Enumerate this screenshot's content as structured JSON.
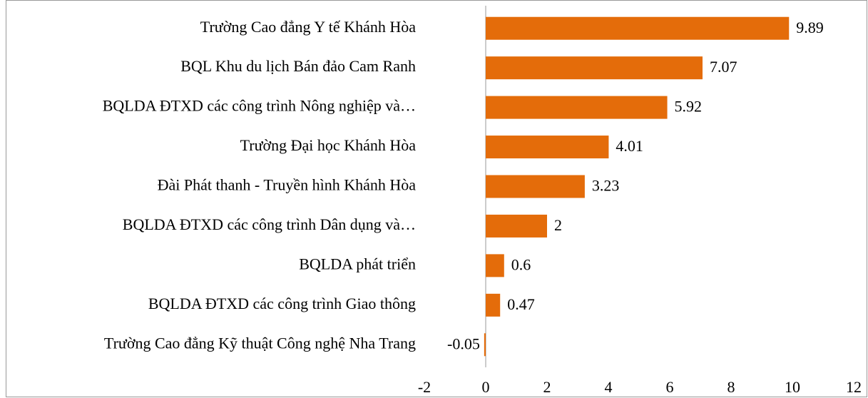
{
  "chart_data": {
    "type": "bar",
    "orientation": "horizontal",
    "categories": [
      "Trường Cao đẳng Y tế Khánh Hòa",
      "BQL Khu du lịch Bán đảo Cam Ranh",
      "BQLDA ĐTXD các công trình Nông nghiệp và…",
      "Trường Đại học Khánh Hòa",
      "Đài Phát thanh - Truyền hình Khánh Hòa",
      "BQLDA ĐTXD các công trình Dân dụng và…",
      "BQLDA phát triển",
      "BQLDA ĐTXD các công trình Giao thông",
      "Trường Cao đẳng Kỹ thuật Công nghệ Nha Trang"
    ],
    "values": [
      9.89,
      7.07,
      5.92,
      4.01,
      3.23,
      2,
      0.6,
      0.47,
      -0.05
    ],
    "color": "#e46c0a",
    "xlim": [
      -2,
      12
    ],
    "xticks": [
      -2,
      0,
      2,
      4,
      6,
      8,
      10,
      12
    ],
    "grid": false
  }
}
